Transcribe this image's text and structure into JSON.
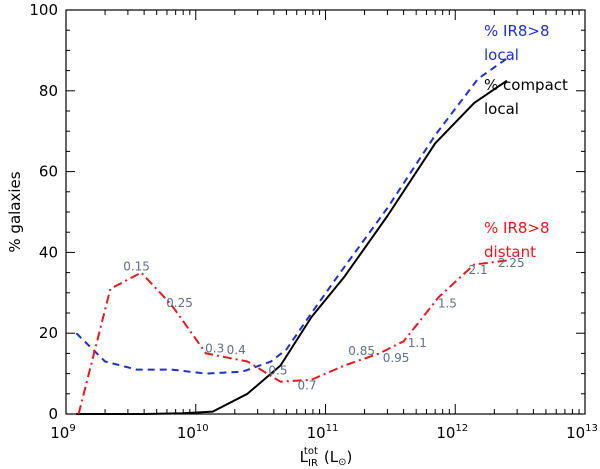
{
  "chart_data": {
    "type": "line",
    "title": "",
    "xlabel": {
      "main": "L",
      "sub": "IR",
      "sup": "tot",
      "unit_open": "(L",
      "unit_sun": "⊙",
      "unit_close": ")"
    },
    "ylabel": "% galaxies",
    "x_scale": "log",
    "xlim": [
      1000000000.0,
      10000000000000.0
    ],
    "ylim": [
      0,
      100
    ],
    "x_ticks": [
      {
        "value": 1000000000.0,
        "base": "10",
        "exp": "9"
      },
      {
        "value": 10000000000.0,
        "base": "10",
        "exp": "10"
      },
      {
        "value": 100000000000.0,
        "base": "10",
        "exp": "11"
      },
      {
        "value": 1000000000000.0,
        "base": "10",
        "exp": "12"
      },
      {
        "value": 10000000000000.0,
        "base": "10",
        "exp": "13"
      }
    ],
    "y_ticks": [
      0,
      20,
      40,
      60,
      80,
      100
    ],
    "y_tick_labels": [
      "0",
      "20",
      "40",
      "60",
      "80",
      "100"
    ],
    "series": [
      {
        "name": "% IR8>8 local",
        "label_lines": [
          "% IR8>8",
          "local"
        ],
        "color": "#1f2fd0",
        "style": "dashed",
        "x": [
          1200000000.0,
          2000000000.0,
          3500000000.0,
          6500000000.0,
          12000000000.0,
          23000000000.0,
          38000000000.0,
          50000000000.0,
          78000000000.0,
          130000000000.0,
          300000000000.0,
          700000000000.0,
          1500000000000.0,
          2500000000000.0
        ],
        "y": [
          20,
          13,
          11,
          11,
          10,
          10.5,
          13,
          16,
          25,
          35,
          51,
          69,
          83,
          88
        ]
      },
      {
        "name": "% compact local",
        "label_lines": [
          "% compact",
          "local"
        ],
        "color": "#000000",
        "style": "solid",
        "x": [
          1200000000.0,
          4000000000.0,
          8000000000.0,
          13500000000.0,
          25000000000.0,
          45000000000.0,
          78000000000.0,
          140000000000.0,
          300000000000.0,
          700000000000.0,
          1400000000000.0,
          2500000000000.0
        ],
        "y": [
          0,
          0,
          0.2,
          0.6,
          5,
          12,
          24,
          34,
          49,
          67,
          77,
          82.5
        ]
      },
      {
        "name": "% IR8>8 distant",
        "label_lines": [
          "% IR8>8",
          "distant"
        ],
        "color": "#e3191c",
        "style": "dashdot",
        "x": [
          1250000000.0,
          2200000000.0,
          3800000000.0,
          6500000000.0,
          12000000000.0,
          25000000000.0,
          45000000000.0,
          78000000000.0,
          140000000000.0,
          260000000000.0,
          400000000000.0,
          750000000000.0,
          1400000000000.0,
          2500000000000.0
        ],
        "y": [
          0,
          31,
          35,
          27,
          15,
          13,
          8,
          8.5,
          12,
          15,
          18,
          29,
          37,
          38
        ]
      }
    ],
    "annotations": [
      {
        "text": "0.15",
        "x": 3500000000.0,
        "y": 35.5
      },
      {
        "text": "0.25",
        "x": 7500000000.0,
        "y": 26.5
      },
      {
        "text": "0.3",
        "x": 14000000000.0,
        "y": 15.2
      },
      {
        "text": "0.4",
        "x": 20500000000.0,
        "y": 14.8
      },
      {
        "text": "0.5",
        "x": 43000000000.0,
        "y": 9.8
      },
      {
        "text": "0.7",
        "x": 72000000000.0,
        "y": 6.1
      },
      {
        "text": "0.85",
        "x": 190000000000.0,
        "y": 14.6
      },
      {
        "text": "0.95",
        "x": 350000000000.0,
        "y": 12.9
      },
      {
        "text": "1.1",
        "x": 510000000000.0,
        "y": 16.6
      },
      {
        "text": "1.5",
        "x": 870000000000.0,
        "y": 26.3
      },
      {
        "text": "2.1",
        "x": 1500000000000.0,
        "y": 34.6
      },
      {
        "text": "2.25",
        "x": 2700000000000.0,
        "y": 36.4
      }
    ],
    "annotation_color": "#5f6f89",
    "grid": false
  }
}
